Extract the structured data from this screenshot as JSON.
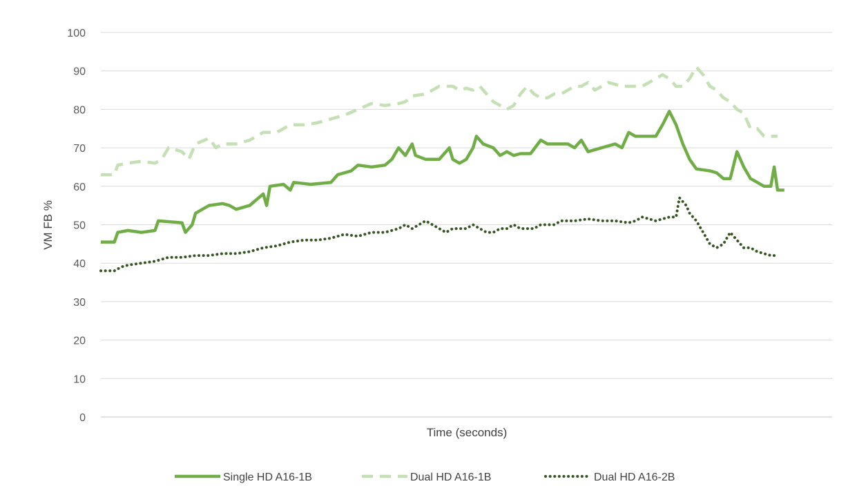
{
  "chart_data": {
    "type": "line",
    "title": "",
    "xlabel": "Time (seconds)",
    "ylabel": "VM FB %",
    "ylim": [
      0,
      100
    ],
    "yticks": [
      0,
      10,
      20,
      30,
      40,
      50,
      60,
      70,
      80,
      90,
      100
    ],
    "grid": "horizontal",
    "legend_position": "bottom",
    "xlim": [
      0,
      100
    ],
    "series": [
      {
        "name": "Single HD A16-1B",
        "color": "#70ad47",
        "style": "solid",
        "points": [
          [
            0,
            45.5
          ],
          [
            2,
            45.5
          ],
          [
            2.5,
            48
          ],
          [
            4,
            48.5
          ],
          [
            6,
            48
          ],
          [
            8,
            48.5
          ],
          [
            8.5,
            51
          ],
          [
            12,
            50.5
          ],
          [
            12.5,
            48
          ],
          [
            13.5,
            50
          ],
          [
            14,
            53
          ],
          [
            16,
            55
          ],
          [
            18,
            55.5
          ],
          [
            19,
            55
          ],
          [
            20,
            54
          ],
          [
            22,
            55
          ],
          [
            24,
            58
          ],
          [
            24.5,
            55
          ],
          [
            25,
            60
          ],
          [
            27,
            60.5
          ],
          [
            28,
            59
          ],
          [
            28.5,
            61
          ],
          [
            31,
            60.5
          ],
          [
            34,
            61
          ],
          [
            35,
            63
          ],
          [
            37,
            64
          ],
          [
            38,
            65.5
          ],
          [
            40,
            65
          ],
          [
            42,
            65.5
          ],
          [
            43,
            67
          ],
          [
            44,
            70
          ],
          [
            45,
            68
          ],
          [
            46,
            71
          ],
          [
            46.5,
            68
          ],
          [
            48,
            67
          ],
          [
            50,
            67
          ],
          [
            51,
            69
          ],
          [
            51.5,
            70
          ],
          [
            52,
            67
          ],
          [
            53,
            66
          ],
          [
            54,
            67
          ],
          [
            55,
            70
          ],
          [
            55.5,
            73
          ],
          [
            56.5,
            71
          ],
          [
            58,
            70
          ],
          [
            59,
            68
          ],
          [
            60,
            69
          ],
          [
            61,
            68
          ],
          [
            62,
            68.5
          ],
          [
            63.5,
            68.5
          ],
          [
            65,
            72
          ],
          [
            66,
            71
          ],
          [
            68,
            71
          ],
          [
            69,
            71
          ],
          [
            70,
            70
          ],
          [
            71,
            72
          ],
          [
            72,
            69
          ],
          [
            74,
            70
          ],
          [
            76,
            71
          ],
          [
            77,
            70
          ],
          [
            78,
            74
          ],
          [
            79,
            73
          ],
          [
            81,
            73
          ],
          [
            82,
            73
          ],
          [
            83,
            76
          ],
          [
            84,
            79.5
          ],
          [
            85,
            76
          ],
          [
            86,
            71
          ],
          [
            87,
            67
          ],
          [
            88,
            64.5
          ],
          [
            90,
            64
          ],
          [
            91,
            63.5
          ],
          [
            92,
            62
          ],
          [
            93,
            62
          ],
          [
            94,
            69
          ],
          [
            95,
            65
          ],
          [
            96,
            62
          ],
          [
            97,
            61
          ],
          [
            98,
            60
          ],
          [
            99,
            60
          ],
          [
            99.5,
            65
          ],
          [
            100,
            59
          ],
          [
            101,
            59
          ]
        ]
      },
      {
        "name": "Dual HD A16-1B",
        "color": "#c5e0b4",
        "style": "dashed",
        "points": [
          [
            0,
            63
          ],
          [
            2,
            63
          ],
          [
            2.5,
            65.5
          ],
          [
            4,
            66
          ],
          [
            6,
            66.5
          ],
          [
            8,
            66
          ],
          [
            9,
            67
          ],
          [
            10,
            70
          ],
          [
            12,
            69
          ],
          [
            13,
            67
          ],
          [
            14,
            71
          ],
          [
            16,
            72.5
          ],
          [
            17,
            70
          ],
          [
            18,
            71
          ],
          [
            20,
            71
          ],
          [
            22,
            72
          ],
          [
            24,
            74
          ],
          [
            26,
            74
          ],
          [
            28,
            76
          ],
          [
            30,
            76
          ],
          [
            32,
            76.5
          ],
          [
            34,
            77.5
          ],
          [
            36,
            78.5
          ],
          [
            38,
            80
          ],
          [
            40,
            81.5
          ],
          [
            42,
            81
          ],
          [
            44,
            81.5
          ],
          [
            45,
            82
          ],
          [
            46,
            83.5
          ],
          [
            48,
            84
          ],
          [
            49,
            85
          ],
          [
            50,
            86
          ],
          [
            52,
            86
          ],
          [
            53,
            85
          ],
          [
            54,
            85.5
          ],
          [
            55,
            85
          ],
          [
            56,
            86
          ],
          [
            57,
            84
          ],
          [
            58,
            82
          ],
          [
            59,
            81
          ],
          [
            60,
            80
          ],
          [
            61,
            81
          ],
          [
            62,
            84
          ],
          [
            63,
            86
          ],
          [
            64,
            84
          ],
          [
            65,
            83
          ],
          [
            66,
            83
          ],
          [
            67,
            84
          ],
          [
            68,
            84
          ],
          [
            70,
            86
          ],
          [
            71,
            86
          ],
          [
            72,
            87
          ],
          [
            73,
            85
          ],
          [
            74,
            86
          ],
          [
            75,
            87
          ],
          [
            76,
            86.5
          ],
          [
            77,
            86
          ],
          [
            78,
            86
          ],
          [
            79,
            86
          ],
          [
            80,
            86
          ],
          [
            81,
            87
          ],
          [
            82,
            88
          ],
          [
            83,
            89
          ],
          [
            84,
            88
          ],
          [
            85,
            86
          ],
          [
            86,
            86
          ],
          [
            87,
            88
          ],
          [
            88,
            91
          ],
          [
            89,
            89
          ],
          [
            90,
            86
          ],
          [
            91,
            85
          ],
          [
            92,
            83
          ],
          [
            93,
            82
          ],
          [
            94,
            80
          ],
          [
            95,
            79
          ],
          [
            96,
            75
          ],
          [
            97,
            75
          ],
          [
            98,
            73
          ],
          [
            99,
            73
          ],
          [
            100,
            73
          ]
        ]
      },
      {
        "name": "Dual HD A16-2B",
        "color": "#375623",
        "style": "dotted",
        "points": [
          [
            0,
            38
          ],
          [
            2,
            38
          ],
          [
            3,
            39
          ],
          [
            4,
            39.5
          ],
          [
            6,
            40
          ],
          [
            8,
            40.5
          ],
          [
            9,
            41
          ],
          [
            10,
            41.5
          ],
          [
            12,
            41.5
          ],
          [
            14,
            42
          ],
          [
            16,
            42
          ],
          [
            18,
            42.5
          ],
          [
            20,
            42.5
          ],
          [
            22,
            43
          ],
          [
            24,
            44
          ],
          [
            26,
            44.5
          ],
          [
            28,
            45.5
          ],
          [
            30,
            46
          ],
          [
            32,
            46
          ],
          [
            34,
            46.5
          ],
          [
            35,
            47
          ],
          [
            36,
            47.5
          ],
          [
            38,
            47
          ],
          [
            40,
            48
          ],
          [
            42,
            48
          ],
          [
            44,
            49
          ],
          [
            45,
            50
          ],
          [
            46,
            49
          ],
          [
            47,
            50
          ],
          [
            48,
            51
          ],
          [
            49,
            50
          ],
          [
            50,
            49
          ],
          [
            51,
            48
          ],
          [
            52,
            49
          ],
          [
            53,
            49
          ],
          [
            54,
            49
          ],
          [
            55,
            50
          ],
          [
            56,
            49
          ],
          [
            57,
            48
          ],
          [
            58,
            48
          ],
          [
            59,
            49
          ],
          [
            60,
            49
          ],
          [
            61,
            50
          ],
          [
            62,
            49
          ],
          [
            63,
            49
          ],
          [
            64,
            49
          ],
          [
            65,
            50
          ],
          [
            66,
            50
          ],
          [
            67,
            50
          ],
          [
            68,
            51
          ],
          [
            70,
            51
          ],
          [
            72,
            51.5
          ],
          [
            74,
            51
          ],
          [
            76,
            51
          ],
          [
            78,
            50.5
          ],
          [
            79,
            51
          ],
          [
            80,
            52
          ],
          [
            81,
            51.5
          ],
          [
            82,
            51
          ],
          [
            83,
            51.5
          ],
          [
            84,
            52
          ],
          [
            85,
            52
          ],
          [
            85.5,
            57
          ],
          [
            86,
            56
          ],
          [
            86.5,
            55
          ],
          [
            87,
            53
          ],
          [
            88,
            51
          ],
          [
            89,
            48
          ],
          [
            90,
            45
          ],
          [
            91,
            44
          ],
          [
            92,
            45
          ],
          [
            93,
            48
          ],
          [
            94,
            46
          ],
          [
            95,
            44
          ],
          [
            96,
            44
          ],
          [
            97,
            43
          ],
          [
            98,
            42.5
          ],
          [
            99,
            42
          ],
          [
            100,
            42
          ]
        ]
      }
    ]
  }
}
